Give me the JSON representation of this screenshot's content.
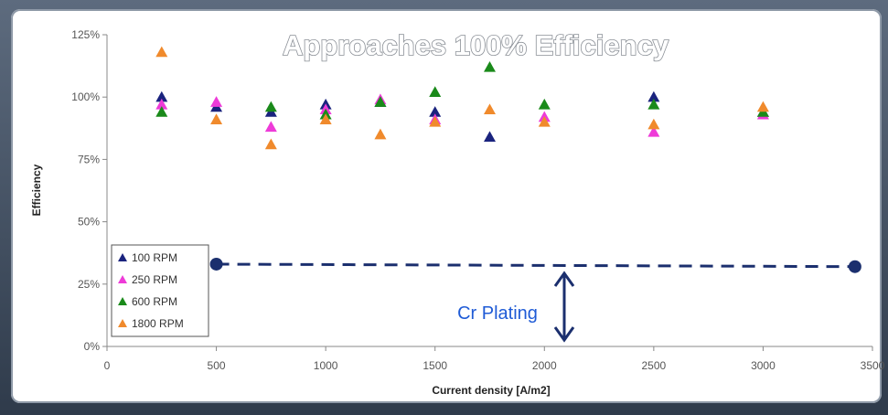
{
  "chart_data": {
    "type": "scatter",
    "title": "Approaches 100% Efficiency",
    "xlabel": "Current density [A/m2]",
    "ylabel": "Efficiency",
    "xlim": [
      0,
      3500
    ],
    "ylim": [
      0,
      125
    ],
    "x_ticks": [
      "0",
      "500",
      "1000",
      "1500",
      "2000",
      "2500",
      "3000",
      "3500"
    ],
    "y_ticks": [
      "0%",
      "25%",
      "50%",
      "75%",
      "100%",
      "125%"
    ],
    "legend_position": "bottom-left",
    "grid": false,
    "series": [
      {
        "name": "100 RPM",
        "color": "#1a237e",
        "marker": "triangle",
        "points": [
          [
            250,
            100
          ],
          [
            500,
            96
          ],
          [
            750,
            94
          ],
          [
            1000,
            97
          ],
          [
            1250,
            98
          ],
          [
            1500,
            94
          ],
          [
            1750,
            84
          ],
          [
            2500,
            100
          ],
          [
            3000,
            94
          ]
        ]
      },
      {
        "name": "250 RPM",
        "color": "#ee3bd8",
        "marker": "triangle",
        "points": [
          [
            250,
            97
          ],
          [
            500,
            98
          ],
          [
            750,
            88
          ],
          [
            1000,
            95
          ],
          [
            1250,
            99
          ],
          [
            1500,
            91
          ],
          [
            2000,
            92
          ],
          [
            2500,
            86
          ],
          [
            3000,
            93
          ]
        ]
      },
      {
        "name": "600 RPM",
        "color": "#1a8a1a",
        "marker": "triangle",
        "points": [
          [
            250,
            94
          ],
          [
            750,
            96
          ],
          [
            1000,
            93
          ],
          [
            1250,
            98
          ],
          [
            1500,
            102
          ],
          [
            1750,
            112
          ],
          [
            2000,
            97
          ],
          [
            2500,
            97
          ],
          [
            3000,
            94
          ]
        ]
      },
      {
        "name": "1800 RPM",
        "color": "#f08a2c",
        "marker": "triangle",
        "points": [
          [
            250,
            118
          ],
          [
            500,
            91
          ],
          [
            750,
            81
          ],
          [
            1000,
            91
          ],
          [
            1250,
            85
          ],
          [
            1500,
            90
          ],
          [
            1750,
            95
          ],
          [
            2000,
            90
          ],
          [
            2500,
            89
          ],
          [
            3000,
            96
          ]
        ]
      }
    ],
    "annotations": {
      "reference_label": "Cr Plating",
      "reference_line": {
        "x_start": 500,
        "x_end": 3420,
        "y_start": 33,
        "y_end": 32,
        "color": "#1b2f6e"
      }
    }
  }
}
